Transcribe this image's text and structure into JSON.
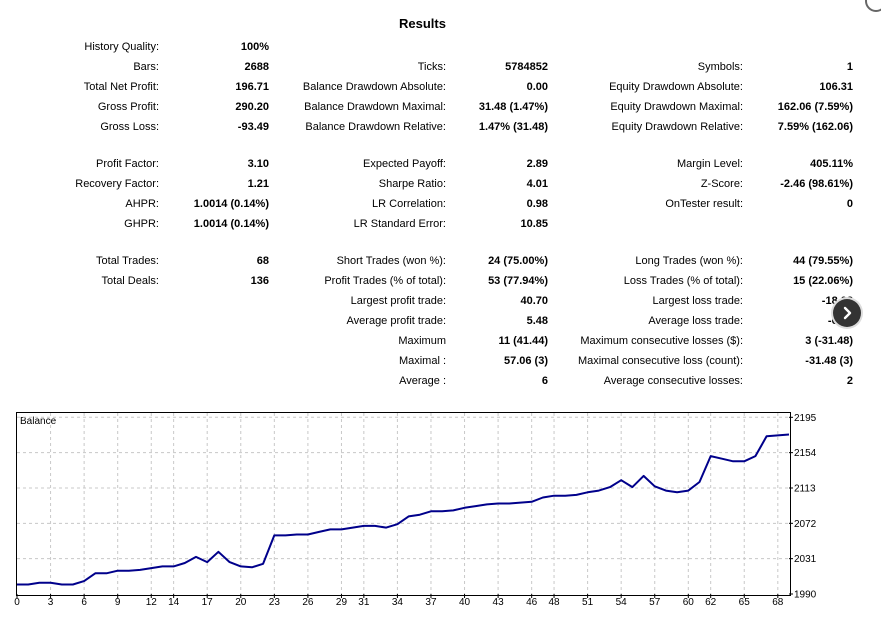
{
  "title": "Results",
  "rows": [
    {
      "top": 40,
      "c1": [
        "History Quality:",
        "100%"
      ]
    },
    {
      "top": 60,
      "c1": [
        "Bars:",
        "2688"
      ],
      "c2": [
        "Ticks:",
        "5784852"
      ],
      "c3": [
        "Symbols:",
        "1"
      ]
    },
    {
      "top": 80,
      "c1": [
        "Total Net Profit:",
        "196.71"
      ],
      "c2": [
        "Balance Drawdown Absolute:",
        "0.00"
      ],
      "c3": [
        "Equity Drawdown Absolute:",
        "106.31"
      ]
    },
    {
      "top": 100,
      "c1": [
        "Gross Profit:",
        "290.20"
      ],
      "c2": [
        "Balance Drawdown Maximal:",
        "31.48 (1.47%)"
      ],
      "c3": [
        "Equity Drawdown Maximal:",
        "162.06 (7.59%)"
      ]
    },
    {
      "top": 120,
      "c1": [
        "Gross Loss:",
        "-93.49"
      ],
      "c2": [
        "Balance Drawdown Relative:",
        "1.47% (31.48)"
      ],
      "c3": [
        "Equity Drawdown Relative:",
        "7.59% (162.06)"
      ]
    },
    {
      "top": 157,
      "c1": [
        "Profit Factor:",
        "3.10"
      ],
      "c2": [
        "Expected Payoff:",
        "2.89"
      ],
      "c3": [
        "Margin Level:",
        "405.11%"
      ]
    },
    {
      "top": 177,
      "c1": [
        "Recovery Factor:",
        "1.21"
      ],
      "c2": [
        "Sharpe Ratio:",
        "4.01"
      ],
      "c3": [
        "Z-Score:",
        "-2.46 (98.61%)"
      ]
    },
    {
      "top": 197,
      "c1": [
        "AHPR:",
        "1.0014 (0.14%)"
      ],
      "c2": [
        "LR Correlation:",
        "0.98"
      ],
      "c3": [
        "OnTester result:",
        "0"
      ]
    },
    {
      "top": 217,
      "c1": [
        "GHPR:",
        "1.0014 (0.14%)"
      ],
      "c2": [
        "LR Standard Error:",
        "10.85"
      ]
    },
    {
      "top": 254,
      "c1": [
        "Total Trades:",
        "68"
      ],
      "c2": [
        "Short Trades (won %):",
        "24 (75.00%)"
      ],
      "c3": [
        "Long Trades (won %):",
        "44 (79.55%)"
      ]
    },
    {
      "top": 274,
      "c1": [
        "Total Deals:",
        "136"
      ],
      "c2": [
        "Profit Trades (% of total):",
        "53 (77.94%)"
      ],
      "c3": [
        "Loss Trades (% of total):",
        "15 (22.06%)"
      ]
    },
    {
      "top": 294,
      "c2": [
        "Largest profit trade:",
        "40.70"
      ],
      "c3": [
        "Largest loss trade:",
        "-18.02"
      ]
    },
    {
      "top": 314,
      "c2": [
        "Average profit trade:",
        "5.48"
      ],
      "c3": [
        "Average loss trade:",
        "-6.23"
      ]
    },
    {
      "top": 334,
      "c2": [
        "Maximum",
        "11 (41.44)"
      ],
      "c3": [
        "Maximum consecutive losses ($):",
        "3 (-31.48)"
      ]
    },
    {
      "top": 354,
      "c2": [
        "Maximal :",
        "57.06 (3)"
      ],
      "c3": [
        "Maximal consecutive loss (count):",
        "-31.48 (3)"
      ]
    },
    {
      "top": 374,
      "c2": [
        "Average :",
        "6"
      ],
      "c3": [
        "Average consecutive losses:",
        "2"
      ]
    }
  ],
  "nav_icon": "chevron-right-icon",
  "chart_data": {
    "type": "line",
    "title": "Balance",
    "x_ticks": [
      "0",
      "3",
      "6",
      "9",
      "12",
      "14",
      "17",
      "20",
      "23",
      "26",
      "29",
      "31",
      "34",
      "37",
      "40",
      "43",
      "46",
      "48",
      "51",
      "54",
      "57",
      "60",
      "62",
      "65",
      "68"
    ],
    "y_ticks": [
      "1990",
      "2031",
      "2072",
      "2113",
      "2154",
      "2195"
    ],
    "xlim": [
      0,
      69
    ],
    "ylim": [
      1990,
      2200
    ],
    "line_color": "#00008b",
    "series": [
      {
        "x": [
          0,
          1,
          2,
          3,
          4,
          5,
          6,
          7,
          8,
          9,
          10,
          11,
          12,
          13,
          14,
          15,
          16,
          17,
          18,
          19,
          20,
          21,
          22,
          23,
          24,
          25,
          26,
          27,
          28,
          29,
          30,
          31,
          32,
          33,
          34,
          35,
          36,
          37,
          38,
          39,
          40,
          41,
          42,
          43,
          44,
          45,
          46,
          47,
          48,
          49,
          50,
          51,
          52,
          53,
          54,
          55,
          56,
          57,
          58,
          59,
          60,
          61,
          62,
          63,
          64,
          65,
          66,
          67,
          68,
          69
        ],
        "y": [
          2001,
          2001,
          2003,
          2003,
          2001,
          2001,
          2005,
          2014,
          2014,
          2017,
          2017,
          2018,
          2020,
          2022,
          2022,
          2026,
          2033,
          2027,
          2039,
          2027,
          2022,
          2021,
          2025,
          2058,
          2058,
          2059,
          2059,
          2062,
          2065,
          2065,
          2067,
          2069,
          2069,
          2067,
          2071,
          2080,
          2082,
          2086,
          2086,
          2087,
          2090,
          2092,
          2094,
          2095,
          2095,
          2096,
          2097,
          2102,
          2104,
          2104,
          2105,
          2108,
          2110,
          2114,
          2122,
          2114,
          2127,
          2115,
          2110,
          2108,
          2110,
          2120,
          2150,
          2147,
          2144,
          2144,
          2150,
          2173,
          2174,
          2175
        ]
      }
    ]
  }
}
